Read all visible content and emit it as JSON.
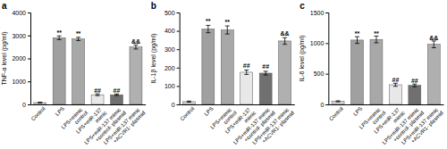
{
  "chart_data": [
    {
      "type": "bar",
      "title": "a",
      "ylabel": "TNF-α level (pg/ml)",
      "categories": [
        "Control",
        "LPS",
        "LPS+mimic\ncontrol",
        "LPS+miR-137\nmimic",
        "LPS+miR-137\nmimic\n+control-\nplasmid",
        "LPS+miR-137\nmimic\n+ACVR1-\nplasmid"
      ],
      "values": [
        80,
        2900,
        2850,
        420,
        420,
        2500
      ],
      "errors": [
        15,
        80,
        70,
        40,
        35,
        90
      ],
      "colors": [
        "#d4d4d4",
        "#a0a0a0",
        "#a8a8a8",
        "#e8e8e8",
        "#707070",
        "#b0b0b0"
      ],
      "ylim": [
        0,
        4000
      ],
      "yticks": [
        0,
        1000,
        2000,
        3000,
        4000
      ],
      "grid": false,
      "annotations": [
        {
          "category": "LPS",
          "text": "**",
          "y": 3040
        },
        {
          "category": "LPS+mimic\ncontrol",
          "text": "**",
          "y": 2980
        },
        {
          "category": "LPS+miR-137\nmimic",
          "text": "##",
          "y": 510
        },
        {
          "category": "LPS+miR-137\nmimic\n+control-\nplasmid",
          "text": "##",
          "y": 510
        },
        {
          "category": "LPS+miR-137\nmimic\n+ACVR1-\nplasmid",
          "text": "&&",
          "y": 2640
        }
      ]
    },
    {
      "type": "bar",
      "title": "b",
      "ylabel": "IL-1β level (pg/ml)",
      "categories": [
        "Control",
        "LPS",
        "LPS+mimic\ncontrol",
        "LPS+miR-137\nmimic",
        "LPS+miR-137\nmimic\n+control-\nplasmid",
        "LPS+miR-137\nmimic\n+ACVR1-\nplasmid"
      ],
      "values": [
        15,
        410,
        405,
        175,
        170,
        345
      ],
      "errors": [
        3,
        20,
        22,
        12,
        10,
        18
      ],
      "colors": [
        "#d4d4d4",
        "#a0a0a0",
        "#a8a8a8",
        "#e8e8e8",
        "#707070",
        "#b0b0b0"
      ],
      "ylim": [
        0,
        500
      ],
      "yticks": [
        0,
        100,
        200,
        300,
        400,
        500
      ],
      "grid": false,
      "annotations": [
        {
          "category": "LPS",
          "text": "**",
          "y": 440
        },
        {
          "category": "LPS+mimic\ncontrol",
          "text": "**",
          "y": 438
        },
        {
          "category": "LPS+miR-137\nmimic",
          "text": "##",
          "y": 200
        },
        {
          "category": "LPS+miR-137\nmimic\n+control-\nplasmid",
          "text": "##",
          "y": 192
        },
        {
          "category": "LPS+miR-137\nmimic\n+ACVR1-\nplasmid",
          "text": "&&",
          "y": 374
        }
      ]
    },
    {
      "type": "bar",
      "title": "c",
      "ylabel": "IL-6 level (pg/ml)",
      "categories": [
        "Control",
        "LPS",
        "LPS+mimic\ncontrol",
        "LPS+miR-137\nmimic",
        "LPS+miR-137\nmimic\n+control-\nplasmid",
        "LPS+miR-137\nmimic\n+ACVR1-\nplasmid"
      ],
      "values": [
        50,
        1050,
        1060,
        320,
        310,
        980
      ],
      "errors": [
        8,
        55,
        55,
        25,
        22,
        55
      ],
      "colors": [
        "#d4d4d4",
        "#a0a0a0",
        "#a8a8a8",
        "#e8e8e8",
        "#707070",
        "#b0b0b0"
      ],
      "ylim": [
        0,
        1500
      ],
      "yticks": [
        0,
        500,
        1000,
        1500
      ],
      "grid": false,
      "annotations": [
        {
          "category": "LPS",
          "text": "**",
          "y": 1122
        },
        {
          "category": "LPS+mimic\ncontrol",
          "text": "**",
          "y": 1128
        },
        {
          "category": "LPS+miR-137\nmimic",
          "text": "##",
          "y": 362
        },
        {
          "category": "LPS+miR-137\nmimic\n+control-\nplasmid",
          "text": "##",
          "y": 349
        },
        {
          "category": "LPS+miR-137\nmimic\n+ACVR1-\nplasmid",
          "text": "&&",
          "y": 1050
        }
      ]
    }
  ]
}
